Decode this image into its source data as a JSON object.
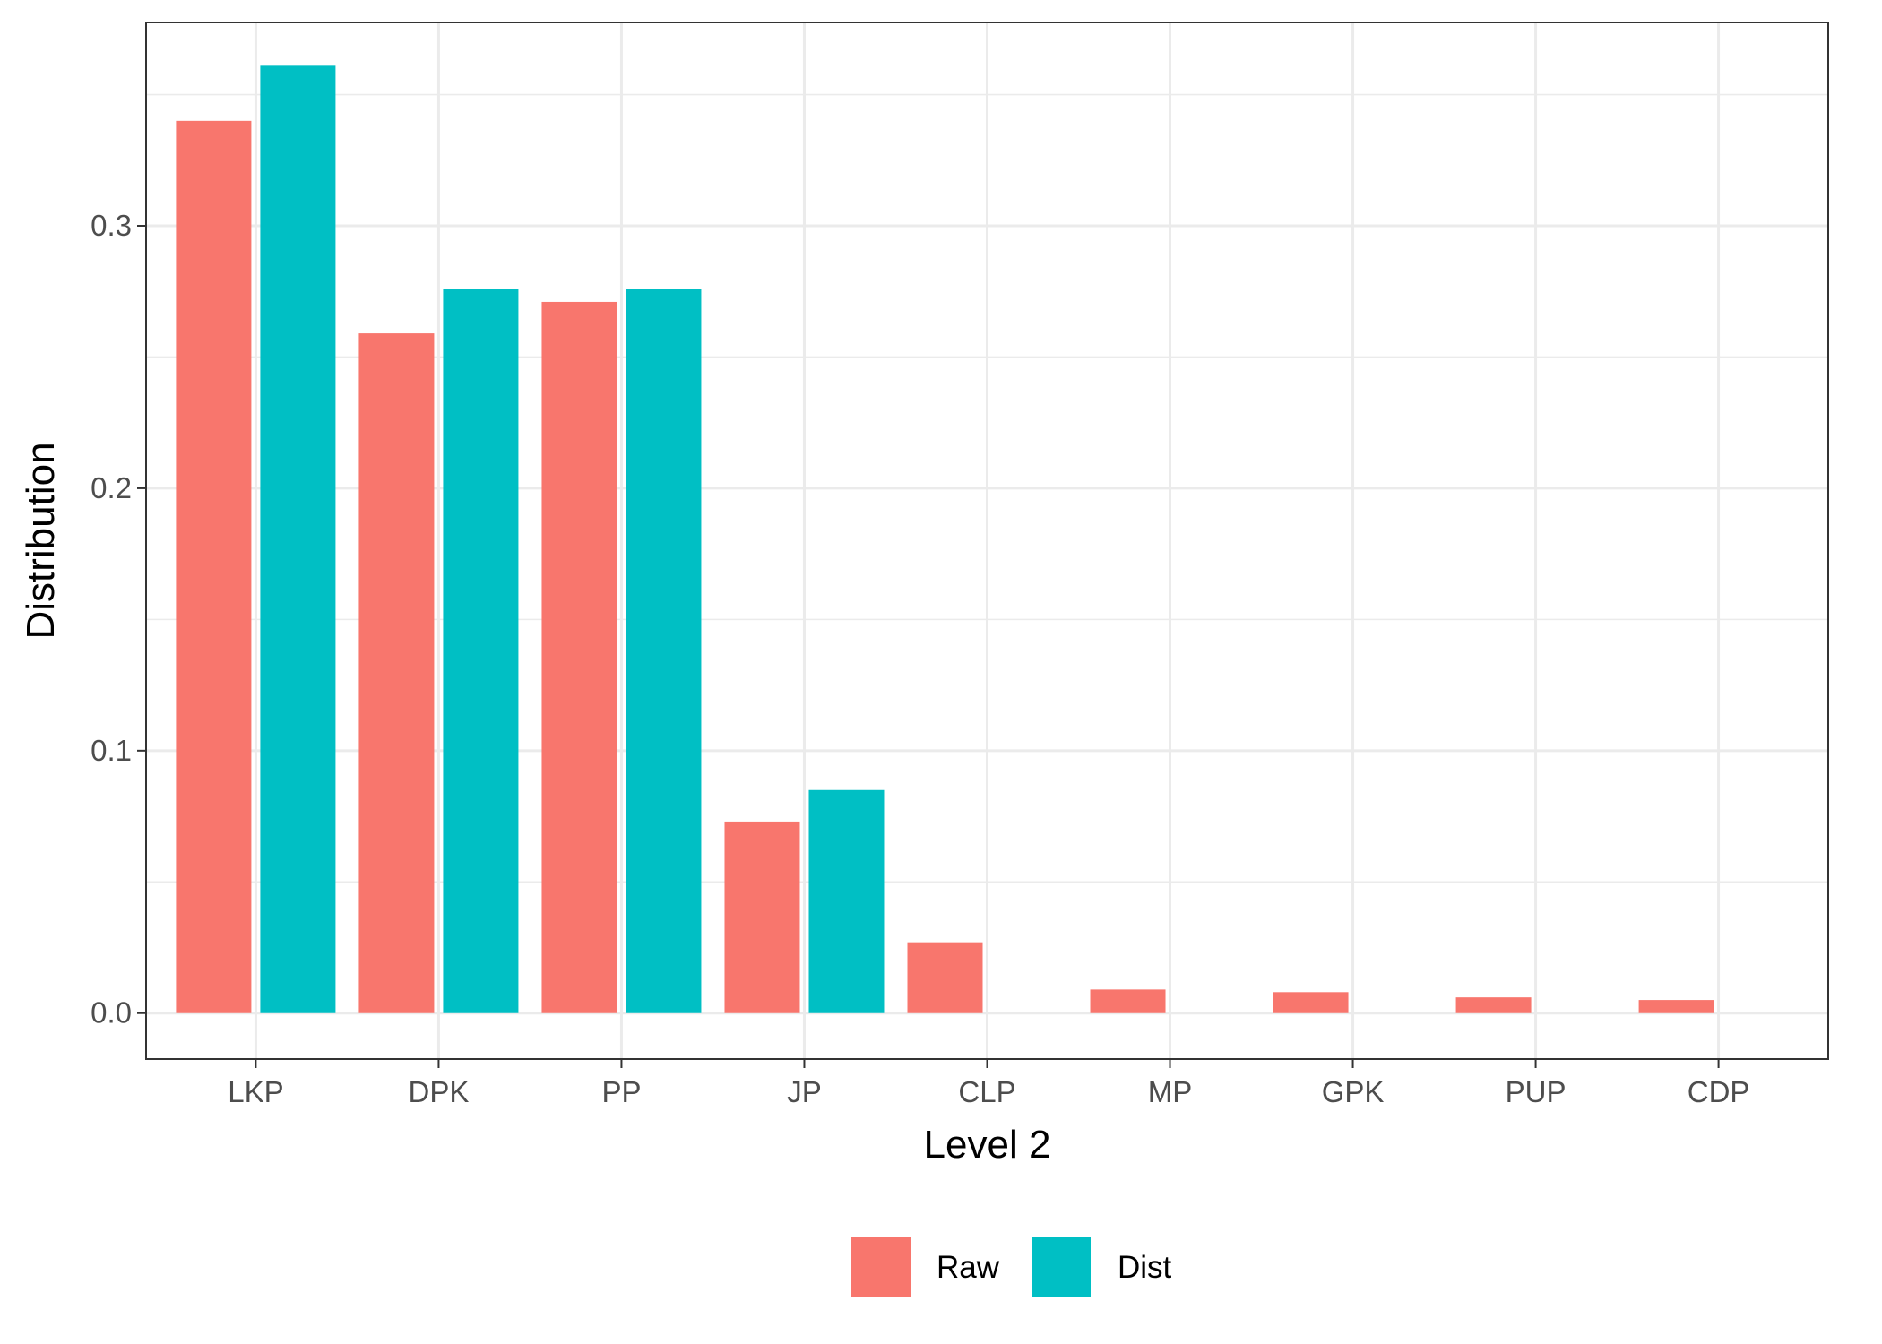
{
  "chart_data": {
    "type": "bar",
    "title": "",
    "xlabel": "Level 2",
    "ylabel": "Distribution",
    "categories": [
      "LKP",
      "DPK",
      "PP",
      "JP",
      "CLP",
      "MP",
      "GPK",
      "PUP",
      "CDP"
    ],
    "series": [
      {
        "name": "Raw",
        "color": "#F8766D",
        "values": [
          0.34,
          0.259,
          0.271,
          0.073,
          0.027,
          0.009,
          0.008,
          0.006,
          0.005
        ]
      },
      {
        "name": "Dist",
        "color": "#00BFC4",
        "values": [
          0.361,
          0.276,
          0.276,
          0.085,
          0.0,
          0.0,
          0.0,
          0.0,
          0.0
        ]
      }
    ],
    "ylim": [
      -0.0175,
      0.3775
    ],
    "yticks": [
      0.0,
      0.1,
      0.2,
      0.3
    ],
    "ytick_labels": [
      "0.0",
      "0.1",
      "0.2",
      "0.3"
    ],
    "grid": true,
    "legend": {
      "position": "bottom",
      "entries": [
        "Raw",
        "Dist"
      ]
    }
  }
}
